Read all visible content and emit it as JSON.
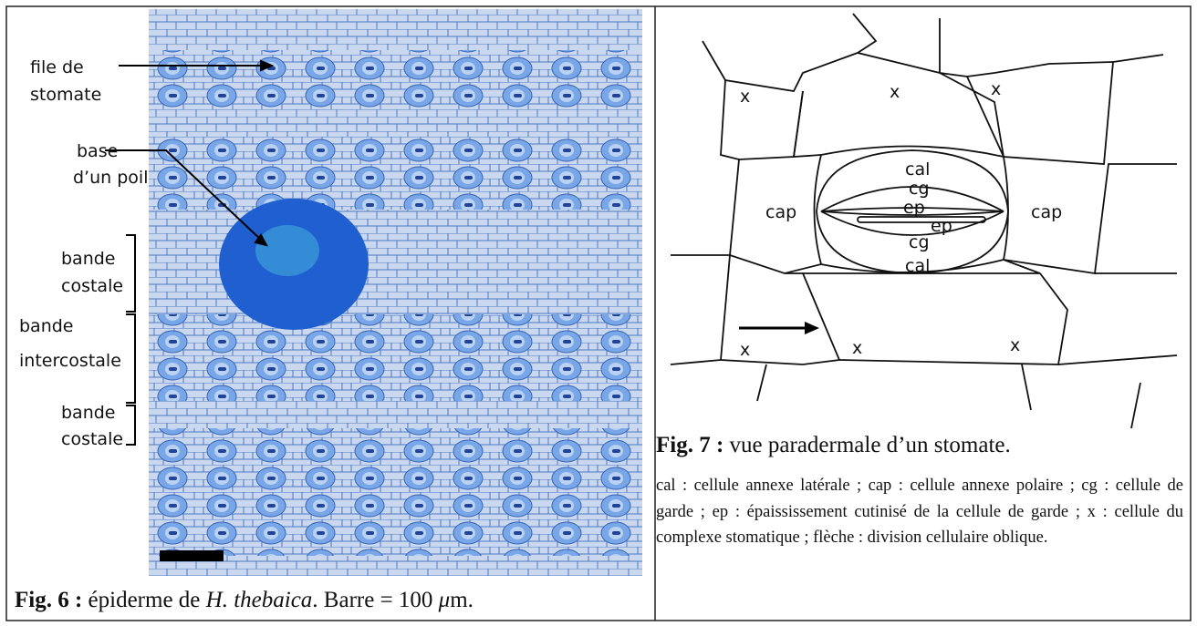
{
  "figure6": {
    "labels": {
      "stomate_row": [
        "file de",
        "stomate"
      ],
      "hair_base": [
        "base",
        "d’un poil"
      ],
      "costal_band_1": [
        "bande",
        "costale"
      ],
      "intercostal_band": [
        "bande",
        "intercostale"
      ],
      "costal_band_2": [
        "bande",
        "costale"
      ]
    },
    "caption": {
      "label": "Fig. 6 :",
      "text_parts": [
        "épiderme de ",
        "H. thebaica",
        ". Barre = 100 ",
        "μ",
        "m."
      ]
    }
  },
  "figure7": {
    "labels": {
      "x": [
        "x",
        "x",
        "x",
        "x",
        "x",
        "x"
      ],
      "cal": [
        "cal",
        "cal"
      ],
      "cg": [
        "cg",
        "cg"
      ],
      "ep": [
        "ep",
        "ep"
      ],
      "cap": [
        "cap",
        "cap"
      ]
    },
    "caption": {
      "label": "Fig. 7 :",
      "text": "vue paradermale d’un stomate."
    },
    "legend": "cal : cellule annexe latérale ; cap : cellule annexe polaire ; cg : cellule de garde ; ep : épaississement cutinisé de la cellule de garde ; x : cellule du complexe stomatique ; flèche : division cellulaire oblique."
  }
}
